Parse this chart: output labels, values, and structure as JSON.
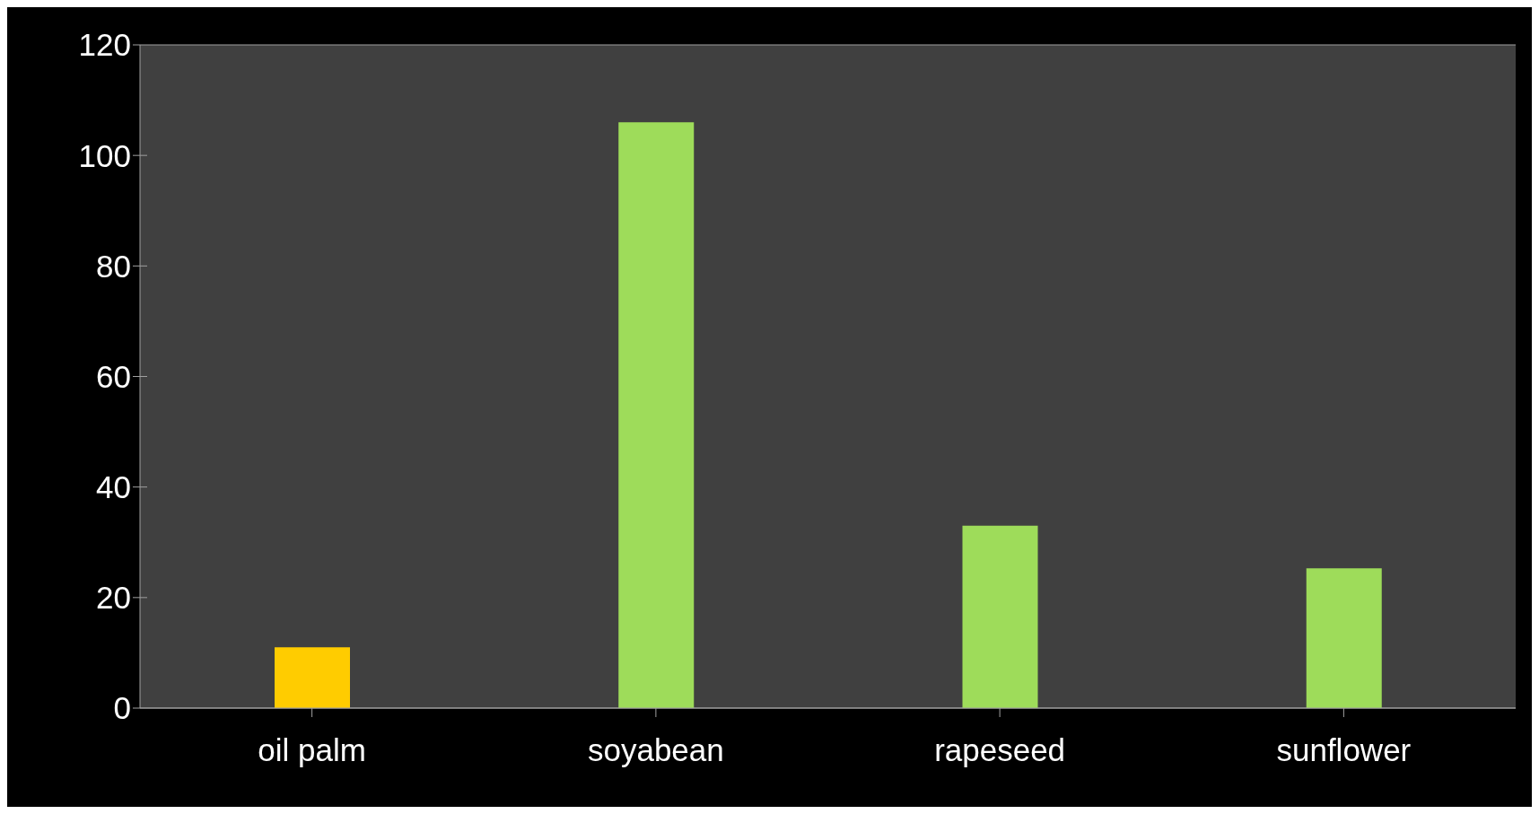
{
  "chart_data": {
    "type": "bar",
    "categories": [
      "oil palm",
      "soyabean",
      "rapeseed",
      "sunflower"
    ],
    "values": [
      11,
      106,
      33,
      25.3
    ],
    "colors": [
      "#ffcc00",
      "#9edc5a",
      "#9edc5a",
      "#9edc5a"
    ],
    "ylim": [
      0,
      120
    ],
    "yticks": [
      0,
      20,
      40,
      60,
      80,
      100,
      120
    ],
    "grid": "y"
  }
}
